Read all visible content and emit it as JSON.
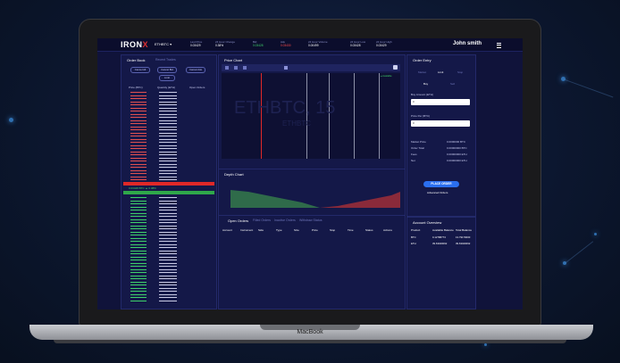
{
  "header": {
    "logo_text": "IRON",
    "logo_mark": "X",
    "pair": "ETHBTC ▾",
    "stats": [
      {
        "label": "Last Price",
        "value": "0.03429",
        "color": ""
      },
      {
        "label": "24 Hour Change",
        "value": "0.38%",
        "color": ""
      },
      {
        "label": "Bid",
        "value": "0.03428",
        "color": "g"
      },
      {
        "label": "Ask",
        "value": "0.03430",
        "color": "r"
      },
      {
        "label": "24 Hour Volume",
        "value": "0.00499",
        "color": ""
      },
      {
        "label": "24 Hour Low",
        "value": "0.03428",
        "color": ""
      },
      {
        "label": "24 Hour High",
        "value": "0.03429",
        "color": ""
      }
    ],
    "user": "John smith"
  },
  "orderbook": {
    "title": "Order Book",
    "tab2": "Recent Trades",
    "controls": [
      "Cancel All",
      "Cancel Bid",
      "Cancel Ask",
      "Limit"
    ],
    "headers": [
      "Price (BTC)",
      "Quantity (ETH)",
      "Open Orders"
    ],
    "spread_label": "0.03428 BTC ▲ 0.38%"
  },
  "chart": {
    "title": "Price Chart",
    "watermark": "ETHBTC, 15",
    "watermark2": "ETHBTC",
    "live": "● Available",
    "depth_title": "Depth Chart"
  },
  "open_orders": {
    "title": "Open Orders",
    "tabs": [
      "Filled Orders",
      "Inactive Orders",
      "Withdraw Status"
    ],
    "cols": [
      "Account",
      "Instrument",
      "Side",
      "Type",
      "Size",
      "Price",
      "Stop",
      "Time",
      "Status",
      "Actions"
    ]
  },
  "order_entry": {
    "title": "Order Entry",
    "types": [
      "Market",
      "Limit",
      "Stop"
    ],
    "sides": [
      "Buy",
      "Sell"
    ],
    "amount_label": "Buy Amount (ETH)",
    "amount_value": "0",
    "price_label": "Price Per (BTC)",
    "price_value": "0",
    "rows": [
      {
        "k": "Market Price",
        "v": "0.0000000 BTC"
      },
      {
        "k": "Order Total",
        "v": "0.00000000 BTC"
      },
      {
        "k": "Fees",
        "v": "0.00000000 ETH"
      },
      {
        "k": "Net",
        "v": "0.00000000 ETH"
      }
    ],
    "button": "PLACE ORDER",
    "link": "Advanced Orders"
  },
  "account": {
    "title": "Account Overview",
    "cols": [
      "Product",
      "Available Balance",
      "Total Balance"
    ],
    "rows": [
      {
        "p": "BTC",
        "a": "0.12788773",
        "t": "13.79179000"
      },
      {
        "p": "ETH",
        "a": "39.63040062",
        "t": "39.63040062"
      }
    ]
  },
  "laptop": {
    "brand": "MacBook"
  }
}
